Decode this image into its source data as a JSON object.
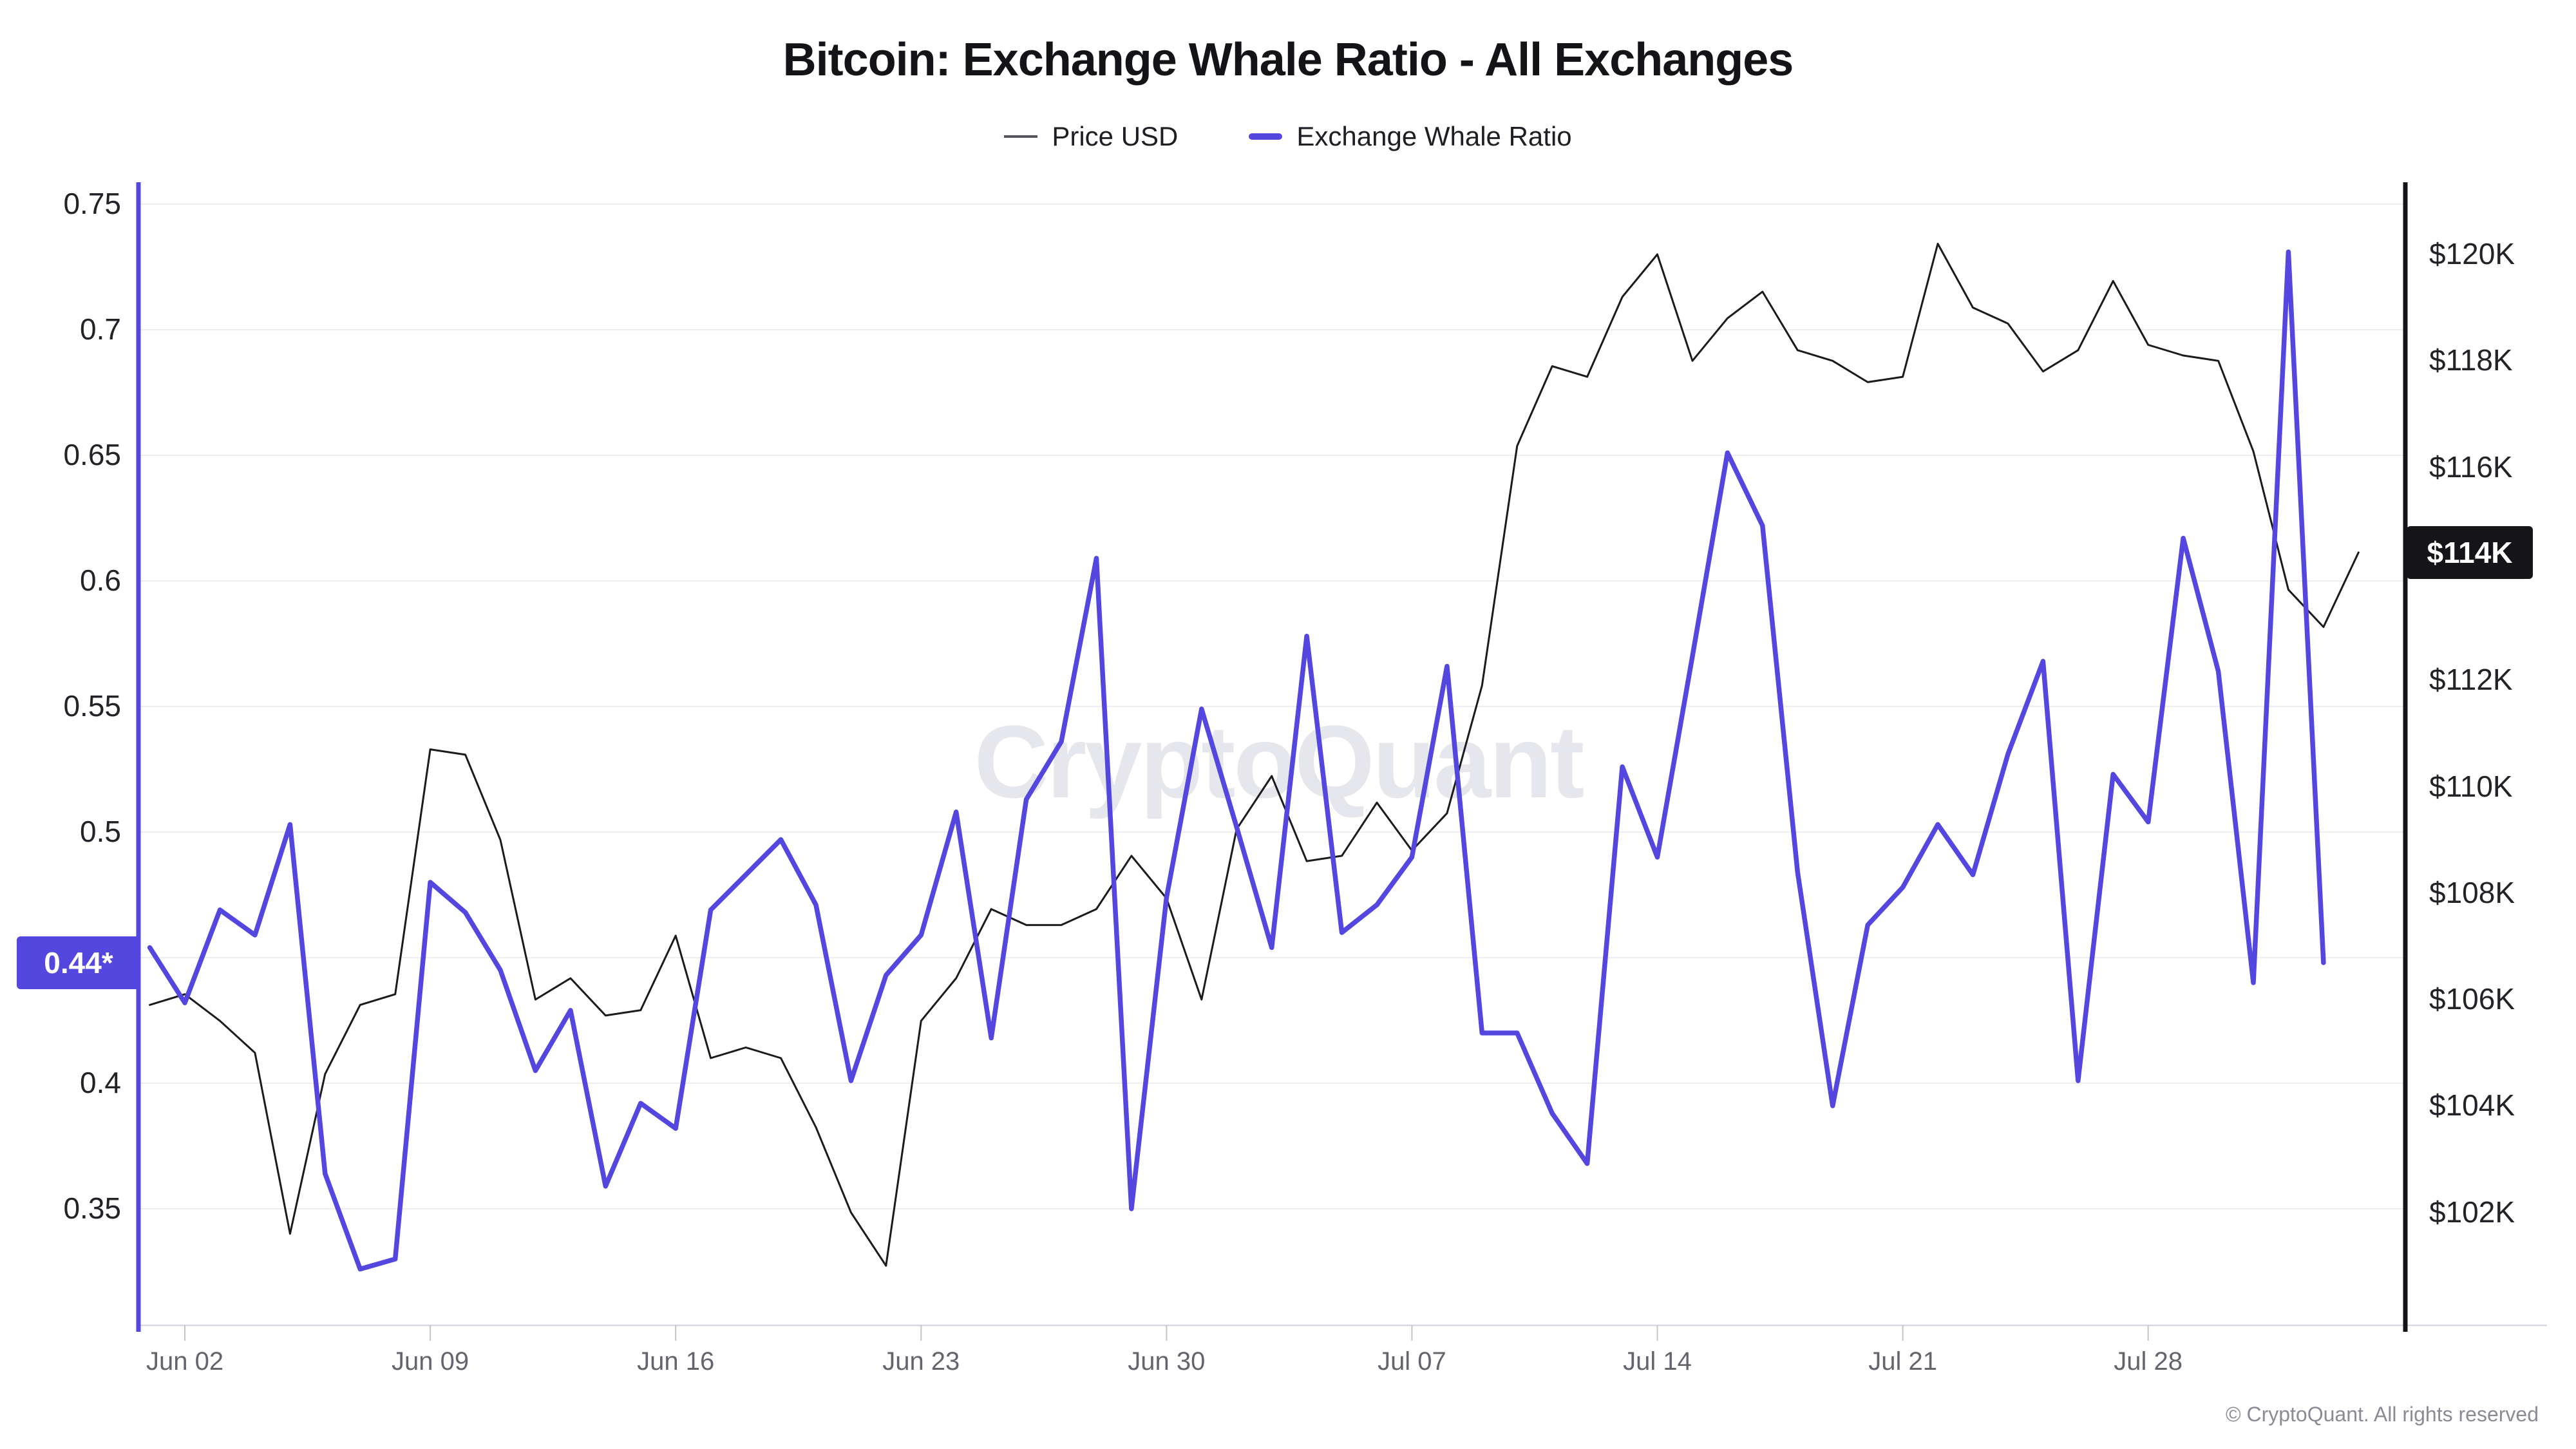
{
  "title": "Bitcoin: Exchange Whale Ratio - All Exchanges",
  "legend": {
    "price_label": "Price USD",
    "ratio_label": "Exchange Whale Ratio"
  },
  "watermark": "CryptoQuant",
  "footer": "© CryptoQuant. All rights reserved",
  "chart_data": {
    "type": "line",
    "title": "Bitcoin: Exchange Whale Ratio - All Exchanges",
    "legend_position": "top",
    "grid": "horizontal",
    "x_dates": [
      "Jun 01",
      "Jun 02",
      "Jun 03",
      "Jun 04",
      "Jun 05",
      "Jun 06",
      "Jun 07",
      "Jun 08",
      "Jun 09",
      "Jun 10",
      "Jun 11",
      "Jun 12",
      "Jun 13",
      "Jun 14",
      "Jun 15",
      "Jun 16",
      "Jun 17",
      "Jun 18",
      "Jun 19",
      "Jun 20",
      "Jun 21",
      "Jun 22",
      "Jun 23",
      "Jun 24",
      "Jun 25",
      "Jun 26",
      "Jun 27",
      "Jun 28",
      "Jun 29",
      "Jun 30",
      "Jul 01",
      "Jul 02",
      "Jul 03",
      "Jul 04",
      "Jul 05",
      "Jul 06",
      "Jul 07",
      "Jul 08",
      "Jul 09",
      "Jul 10",
      "Jul 11",
      "Jul 12",
      "Jul 13",
      "Jul 14",
      "Jul 15",
      "Jul 16",
      "Jul 17",
      "Jul 18",
      "Jul 19",
      "Jul 20",
      "Jul 21",
      "Jul 22",
      "Jul 23",
      "Jul 24",
      "Jul 25",
      "Jul 26",
      "Jul 27",
      "Jul 28",
      "Jul 29",
      "Jul 30",
      "Jul 31",
      "Aug 01",
      "Aug 02",
      "Aug 03"
    ],
    "x_tick_labels": [
      "Jun 02",
      "Jun 09",
      "Jun 16",
      "Jun 23",
      "Jun 30",
      "Jul 07",
      "Jul 14",
      "Jul 21",
      "Jul 28"
    ],
    "series": [
      {
        "name": "Price USD",
        "axis": "right",
        "color": "#1a1a1f",
        "unit": "USD thousands",
        "values": [
          105.9,
          106.1,
          105.6,
          105.0,
          101.6,
          104.6,
          105.9,
          106.1,
          110.7,
          110.6,
          109.0,
          106.0,
          106.4,
          105.7,
          105.8,
          107.2,
          104.9,
          105.1,
          104.9,
          103.6,
          102.0,
          101.0,
          105.6,
          106.4,
          107.7,
          107.4,
          107.4,
          107.7,
          108.7,
          107.9,
          106.0,
          109.2,
          110.2,
          108.6,
          108.7,
          109.7,
          108.8,
          109.5,
          111.9,
          116.4,
          117.9,
          117.7,
          119.2,
          120.0,
          118.0,
          118.8,
          119.3,
          118.2,
          118.0,
          117.6,
          117.7,
          120.2,
          119.0,
          118.7,
          117.8,
          118.2,
          119.5,
          118.3,
          118.1,
          118.0,
          116.3,
          113.7,
          113.0,
          114.4
        ]
      },
      {
        "name": "Exchange Whale Ratio",
        "axis": "left",
        "color": "#5447e0",
        "unit": "ratio",
        "values": [
          0.454,
          0.432,
          0.469,
          0.459,
          0.503,
          0.364,
          0.326,
          0.33,
          0.48,
          0.468,
          0.445,
          0.405,
          0.429,
          0.359,
          0.392,
          0.382,
          0.469,
          0.483,
          0.497,
          0.471,
          0.401,
          0.443,
          0.459,
          0.508,
          0.418,
          0.513,
          0.536,
          0.609,
          0.35,
          0.474,
          0.549,
          0.502,
          0.454,
          0.578,
          0.46,
          0.471,
          0.49,
          0.566,
          0.42,
          0.42,
          0.388,
          0.368,
          0.526,
          0.49,
          0.57,
          0.651,
          0.622,
          0.484,
          0.391,
          0.463,
          0.478,
          0.503,
          0.483,
          0.531,
          0.568,
          0.401,
          0.523,
          0.504,
          0.617,
          0.564,
          0.44,
          0.731,
          0.448,
          null
        ]
      }
    ],
    "left_axis": {
      "range": [
        0.302,
        0.76
      ],
      "grid_values": [
        0.75,
        0.7,
        0.65,
        0.6,
        0.55,
        0.5,
        0.45,
        0.4,
        0.35
      ],
      "ticks": [
        {
          "value": 0.75,
          "label": "0.75"
        },
        {
          "value": 0.7,
          "label": "0.7"
        },
        {
          "value": 0.65,
          "label": "0.65"
        },
        {
          "value": 0.6,
          "label": "0.6"
        },
        {
          "value": 0.55,
          "label": "0.55"
        },
        {
          "value": 0.5,
          "label": "0.5"
        },
        {
          "value": 0.4,
          "label": "0.4"
        },
        {
          "value": 0.35,
          "label": "0.35"
        }
      ]
    },
    "right_axis": {
      "range": [
        99.9,
        121.4
      ],
      "ticks": [
        {
          "value": 120,
          "label": "$120K"
        },
        {
          "value": 118,
          "label": "$118K"
        },
        {
          "value": 116,
          "label": "$116K"
        },
        {
          "value": 112,
          "label": "$112K"
        },
        {
          "value": 110,
          "label": "$110K"
        },
        {
          "value": 108,
          "label": "$108K"
        },
        {
          "value": 106,
          "label": "$106K"
        },
        {
          "value": 104,
          "label": "$104K"
        },
        {
          "value": 102,
          "label": "$102K"
        }
      ]
    },
    "badges": {
      "ratio_label": "0.44*",
      "price_label": "$114K"
    }
  }
}
